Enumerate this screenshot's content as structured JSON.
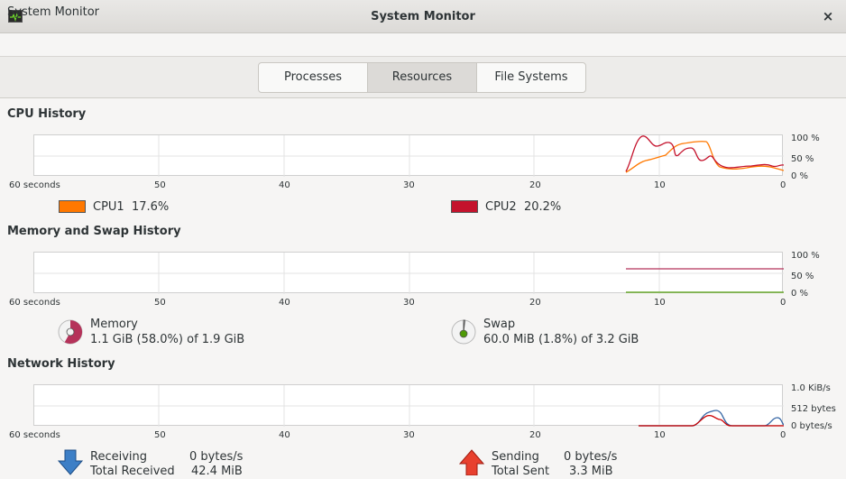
{
  "window": {
    "title": "System Monitor",
    "close_label": "×",
    "icon": "system-monitor-icon"
  },
  "header": {
    "label": "System Monitor"
  },
  "tabs": [
    {
      "label": "Processes",
      "active": false
    },
    {
      "label": "Resources",
      "active": true
    },
    {
      "label": "File Systems",
      "active": false
    }
  ],
  "x_ticks": [
    "60 seconds",
    "50",
    "40",
    "30",
    "20",
    "10",
    "0"
  ],
  "cpu": {
    "title": "CPU History",
    "y_ticks": [
      "100 %",
      "50 %",
      "0 %"
    ],
    "cpu1": {
      "name": "CPU1",
      "value": "17.6%",
      "color": "#ff7800"
    },
    "cpu2": {
      "name": "CPU2",
      "value": "20.2%",
      "color": "#c4122c"
    }
  },
  "memory": {
    "title": "Memory and Swap History",
    "y_ticks": [
      "100 %",
      "50 %",
      "0 %"
    ],
    "memory_label": "Memory",
    "memory_value": "1.1 GiB (58.0%) of 1.9 GiB",
    "memory_color": "#b5335a",
    "memory_fraction": 0.58,
    "swap_label": "Swap",
    "swap_value": "60.0 MiB (1.8%) of 3.2 GiB",
    "swap_color": "#4e9a06",
    "swap_fraction": 0.018
  },
  "network": {
    "title": "Network History",
    "y_ticks": [
      "1.0 KiB/s",
      "512 bytes/s",
      "0 bytes/s"
    ],
    "receiving_label": "Receiving",
    "receiving_value": "0 bytes/s",
    "total_received_label": "Total Received",
    "total_received_value": "42.4 MiB",
    "sending_label": "Sending",
    "sending_value": "0 bytes/s",
    "total_sent_label": "Total Sent",
    "total_sent_value": "3.3 MiB",
    "receiving_color": "#3465a4",
    "sending_color": "#cc0000"
  }
}
